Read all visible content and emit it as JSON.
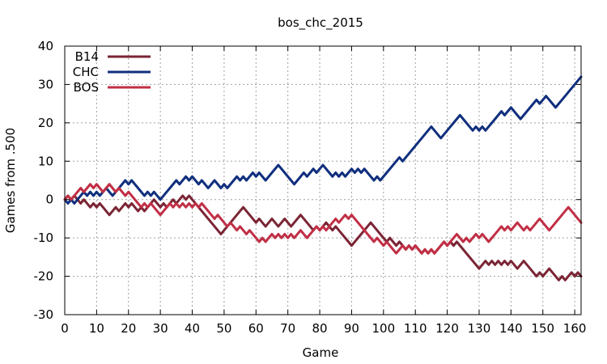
{
  "chart_data": {
    "type": "line",
    "title": "bos_chc_2015",
    "xlabel": "Game",
    "ylabel": "Games from .500",
    "xlim": [
      0,
      162
    ],
    "ylim": [
      -30,
      40
    ],
    "xticks": [
      0,
      10,
      20,
      30,
      40,
      50,
      60,
      70,
      80,
      90,
      100,
      110,
      120,
      130,
      140,
      150,
      160
    ],
    "yticks": [
      -30,
      -20,
      -10,
      0,
      10,
      20,
      30,
      40
    ],
    "grid": true,
    "legend_position": "top-left",
    "series": [
      {
        "name": "B14",
        "color": "#7b2535",
        "x": [
          0,
          1,
          2,
          3,
          4,
          5,
          6,
          7,
          8,
          9,
          10,
          11,
          12,
          13,
          14,
          15,
          16,
          17,
          18,
          19,
          20,
          21,
          22,
          23,
          24,
          25,
          26,
          27,
          28,
          29,
          30,
          31,
          32,
          33,
          34,
          35,
          36,
          37,
          38,
          39,
          40,
          41,
          42,
          43,
          44,
          45,
          46,
          47,
          48,
          49,
          50,
          51,
          52,
          53,
          54,
          55,
          56,
          57,
          58,
          59,
          60,
          61,
          62,
          63,
          64,
          65,
          66,
          67,
          68,
          69,
          70,
          71,
          72,
          73,
          74,
          75,
          76,
          77,
          78,
          79,
          80,
          81,
          82,
          83,
          84,
          85,
          86,
          87,
          88,
          89,
          90,
          91,
          92,
          93,
          94,
          95,
          96,
          97,
          98,
          99,
          100,
          101,
          102,
          103,
          104,
          105,
          106,
          107,
          108,
          109,
          110,
          111,
          112,
          113,
          114,
          115,
          116,
          117,
          118,
          119,
          120,
          121,
          122,
          123,
          124,
          125,
          126,
          127,
          128,
          129,
          130,
          131,
          132,
          133,
          134,
          135,
          136,
          137,
          138,
          139,
          140,
          141,
          142,
          143,
          144,
          145,
          146,
          147,
          148,
          149,
          150,
          151,
          152,
          153,
          154,
          155,
          156,
          157,
          158,
          159,
          160,
          161,
          162
        ],
        "values": [
          0,
          1,
          0,
          1,
          0,
          -1,
          0,
          -1,
          -2,
          -1,
          -2,
          -1,
          -2,
          -3,
          -4,
          -3,
          -2,
          -3,
          -2,
          -1,
          -2,
          -1,
          -2,
          -3,
          -2,
          -3,
          -2,
          -1,
          0,
          -1,
          -2,
          -1,
          -2,
          -1,
          0,
          -1,
          0,
          1,
          0,
          1,
          0,
          -1,
          -2,
          -3,
          -4,
          -5,
          -6,
          -7,
          -8,
          -9,
          -8,
          -7,
          -6,
          -5,
          -4,
          -3,
          -2,
          -3,
          -4,
          -5,
          -6,
          -5,
          -6,
          -7,
          -6,
          -5,
          -6,
          -7,
          -6,
          -5,
          -6,
          -7,
          -6,
          -5,
          -4,
          -5,
          -6,
          -7,
          -8,
          -7,
          -8,
          -7,
          -6,
          -7,
          -8,
          -7,
          -8,
          -9,
          -10,
          -11,
          -12,
          -11,
          -10,
          -9,
          -8,
          -7,
          -6,
          -7,
          -8,
          -9,
          -10,
          -11,
          -10,
          -11,
          -12,
          -11,
          -12,
          -13,
          -12,
          -13,
          -12,
          -13,
          -14,
          -13,
          -14,
          -13,
          -14,
          -13,
          -12,
          -11,
          -12,
          -11,
          -12,
          -11,
          -12,
          -13,
          -14,
          -15,
          -16,
          -17,
          -18,
          -17,
          -16,
          -17,
          -16,
          -17,
          -16,
          -17,
          -16,
          -17,
          -16,
          -17,
          -18,
          -17,
          -16,
          -17,
          -18,
          -19,
          -20,
          -19,
          -20,
          -19,
          -18,
          -19,
          -20,
          -21,
          -20,
          -21,
          -20,
          -19,
          -20,
          -19,
          -20
        ]
      },
      {
        "name": "CHC",
        "color": "#102f7e",
        "x": [
          0,
          1,
          2,
          3,
          4,
          5,
          6,
          7,
          8,
          9,
          10,
          11,
          12,
          13,
          14,
          15,
          16,
          17,
          18,
          19,
          20,
          21,
          22,
          23,
          24,
          25,
          26,
          27,
          28,
          29,
          30,
          31,
          32,
          33,
          34,
          35,
          36,
          37,
          38,
          39,
          40,
          41,
          42,
          43,
          44,
          45,
          46,
          47,
          48,
          49,
          50,
          51,
          52,
          53,
          54,
          55,
          56,
          57,
          58,
          59,
          60,
          61,
          62,
          63,
          64,
          65,
          66,
          67,
          68,
          69,
          70,
          71,
          72,
          73,
          74,
          75,
          76,
          77,
          78,
          79,
          80,
          81,
          82,
          83,
          84,
          85,
          86,
          87,
          88,
          89,
          90,
          91,
          92,
          93,
          94,
          95,
          96,
          97,
          98,
          99,
          100,
          101,
          102,
          103,
          104,
          105,
          106,
          107,
          108,
          109,
          110,
          111,
          112,
          113,
          114,
          115,
          116,
          117,
          118,
          119,
          120,
          121,
          122,
          123,
          124,
          125,
          126,
          127,
          128,
          129,
          130,
          131,
          132,
          133,
          134,
          135,
          136,
          137,
          138,
          139,
          140,
          141,
          142,
          143,
          144,
          145,
          146,
          147,
          148,
          149,
          150,
          151,
          152,
          153,
          154,
          155,
          156,
          157,
          158,
          159,
          160,
          161,
          162
        ],
        "values": [
          0,
          -1,
          0,
          -1,
          0,
          1,
          2,
          1,
          2,
          1,
          2,
          1,
          2,
          3,
          2,
          1,
          2,
          3,
          4,
          5,
          4,
          5,
          4,
          3,
          2,
          1,
          2,
          1,
          2,
          1,
          0,
          1,
          2,
          3,
          4,
          5,
          4,
          5,
          6,
          5,
          6,
          5,
          4,
          5,
          4,
          3,
          4,
          5,
          4,
          3,
          4,
          3,
          4,
          5,
          6,
          5,
          6,
          5,
          6,
          7,
          6,
          7,
          6,
          5,
          6,
          7,
          8,
          9,
          8,
          7,
          6,
          5,
          4,
          5,
          6,
          7,
          6,
          7,
          8,
          7,
          8,
          9,
          8,
          7,
          6,
          7,
          6,
          7,
          6,
          7,
          8,
          7,
          8,
          7,
          8,
          7,
          6,
          5,
          6,
          5,
          6,
          7,
          8,
          9,
          10,
          11,
          10,
          11,
          12,
          13,
          14,
          15,
          16,
          17,
          18,
          19,
          18,
          17,
          16,
          17,
          18,
          19,
          20,
          21,
          22,
          21,
          20,
          19,
          18,
          19,
          18,
          19,
          18,
          19,
          20,
          21,
          22,
          23,
          22,
          23,
          24,
          23,
          22,
          21,
          22,
          23,
          24,
          25,
          26,
          25,
          26,
          27,
          26,
          25,
          24,
          25,
          26,
          27,
          28,
          29,
          30,
          31,
          32
        ]
      },
      {
        "name": "BOS",
        "color": "#c12f45",
        "x": [
          0,
          1,
          2,
          3,
          4,
          5,
          6,
          7,
          8,
          9,
          10,
          11,
          12,
          13,
          14,
          15,
          16,
          17,
          18,
          19,
          20,
          21,
          22,
          23,
          24,
          25,
          26,
          27,
          28,
          29,
          30,
          31,
          32,
          33,
          34,
          35,
          36,
          37,
          38,
          39,
          40,
          41,
          42,
          43,
          44,
          45,
          46,
          47,
          48,
          49,
          50,
          51,
          52,
          53,
          54,
          55,
          56,
          57,
          58,
          59,
          60,
          61,
          62,
          63,
          64,
          65,
          66,
          67,
          68,
          69,
          70,
          71,
          72,
          73,
          74,
          75,
          76,
          77,
          78,
          79,
          80,
          81,
          82,
          83,
          84,
          85,
          86,
          87,
          88,
          89,
          90,
          91,
          92,
          93,
          94,
          95,
          96,
          97,
          98,
          99,
          100,
          101,
          102,
          103,
          104,
          105,
          106,
          107,
          108,
          109,
          110,
          111,
          112,
          113,
          114,
          115,
          116,
          117,
          118,
          119,
          120,
          121,
          122,
          123,
          124,
          125,
          126,
          127,
          128,
          129,
          130,
          131,
          132,
          133,
          134,
          135,
          136,
          137,
          138,
          139,
          140,
          141,
          142,
          143,
          144,
          145,
          146,
          147,
          148,
          149,
          150,
          151,
          152,
          153,
          154,
          155,
          156,
          157,
          158,
          159,
          160,
          161,
          162
        ],
        "values": [
          0,
          1,
          0,
          1,
          2,
          3,
          2,
          3,
          4,
          3,
          4,
          3,
          2,
          3,
          4,
          3,
          2,
          3,
          2,
          1,
          2,
          1,
          0,
          -1,
          -2,
          -1,
          -2,
          -1,
          -2,
          -3,
          -4,
          -3,
          -2,
          -1,
          -2,
          -1,
          -2,
          -1,
          -2,
          -1,
          -2,
          -1,
          -2,
          -1,
          -2,
          -3,
          -4,
          -5,
          -4,
          -5,
          -6,
          -7,
          -6,
          -7,
          -8,
          -7,
          -8,
          -9,
          -8,
          -9,
          -10,
          -11,
          -10,
          -11,
          -10,
          -9,
          -10,
          -9,
          -10,
          -9,
          -10,
          -9,
          -10,
          -9,
          -8,
          -9,
          -10,
          -9,
          -8,
          -7,
          -8,
          -7,
          -8,
          -7,
          -6,
          -5,
          -6,
          -5,
          -4,
          -5,
          -4,
          -5,
          -6,
          -7,
          -8,
          -9,
          -10,
          -11,
          -10,
          -11,
          -12,
          -11,
          -12,
          -13,
          -14,
          -13,
          -12,
          -13,
          -12,
          -13,
          -12,
          -13,
          -14,
          -13,
          -14,
          -13,
          -14,
          -13,
          -12,
          -11,
          -12,
          -11,
          -10,
          -9,
          -10,
          -11,
          -10,
          -11,
          -10,
          -9,
          -10,
          -9,
          -10,
          -11,
          -10,
          -9,
          -8,
          -7,
          -8,
          -7,
          -8,
          -7,
          -6,
          -7,
          -8,
          -7,
          -8,
          -7,
          -6,
          -5,
          -6,
          -7,
          -8,
          -7,
          -6,
          -5,
          -4,
          -3,
          -2,
          -3,
          -4,
          -5,
          -6
        ]
      }
    ]
  }
}
